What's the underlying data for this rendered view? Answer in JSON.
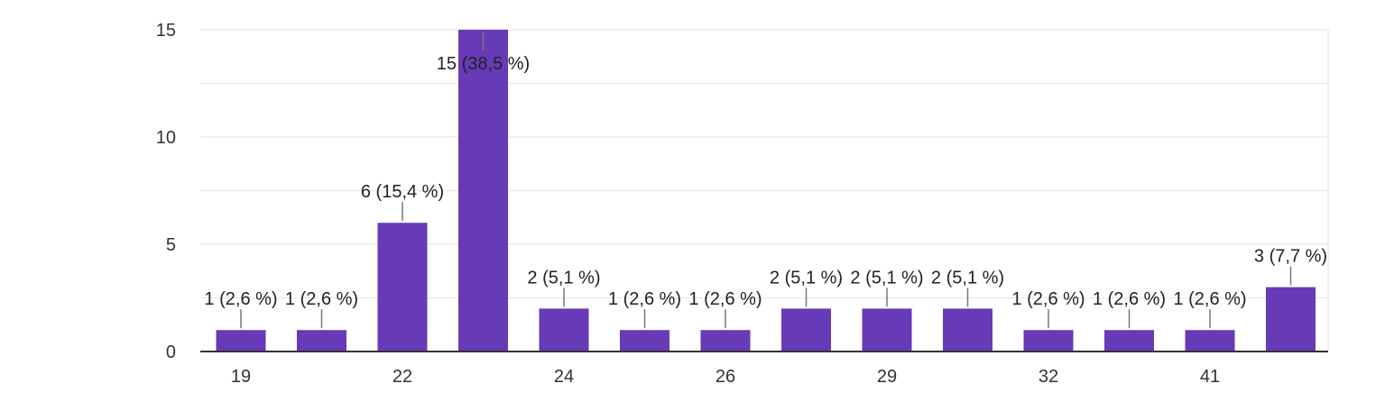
{
  "chart_data": {
    "type": "bar",
    "title": "",
    "xlabel": "",
    "ylabel": "",
    "ylim": [
      0,
      15
    ],
    "yticks": [
      0,
      5,
      10,
      15
    ],
    "grid": true,
    "categories": [
      "19",
      "",
      "22",
      "",
      "24",
      "",
      "26",
      "",
      "29",
      "",
      "32",
      "",
      "41",
      ""
    ],
    "values": [
      1,
      1,
      6,
      15,
      2,
      1,
      1,
      2,
      2,
      2,
      1,
      1,
      1,
      3
    ],
    "labels": [
      "1 (2,6 %)",
      "1 (2,6 %)",
      "6 (15,4 %)",
      "15 (38,5 %)",
      "2 (5,1 %)",
      "1 (2,6 %)",
      "1 (2,6 %)",
      "2 (5,1 %)",
      "2 (5,1 %)",
      "2 (5,1 %)",
      "1 (2,6 %)",
      "1 (2,6 %)",
      "1 (2,6 %)",
      "3 (7,7 %)"
    ],
    "colors": {
      "bar": "#673ab7",
      "grid": "#ebebeb",
      "axis": "#333333",
      "leader": "#777777"
    }
  }
}
